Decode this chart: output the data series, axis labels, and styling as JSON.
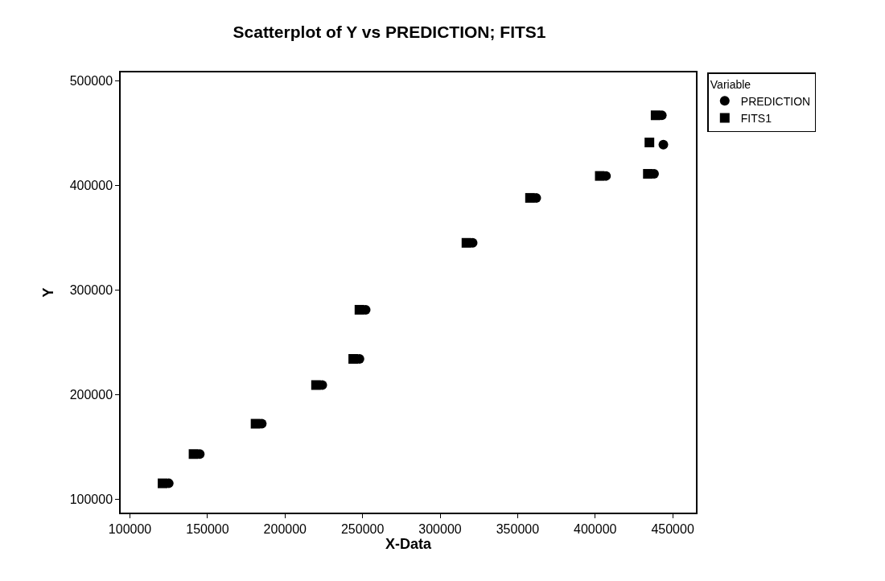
{
  "chart_data": {
    "type": "scatter",
    "title": "Scatterplot of Y vs PREDICTION; FITS1",
    "xlabel": "X-Data",
    "ylabel": "Y",
    "legend_title": "Variable",
    "series": [
      {
        "name": "PREDICTION",
        "color": "#000000",
        "marker": "circle",
        "x": [
          125000,
          145000,
          185000,
          224000,
          248000,
          252000,
          321000,
          362000,
          407000,
          438000,
          444000,
          443000
        ],
        "values": [
          115000,
          143000,
          172000,
          209000,
          234000,
          281000,
          345000,
          388000,
          409000,
          411000,
          439000,
          467000
        ]
      },
      {
        "name": "FITS1",
        "color": "#000000",
        "marker": "square",
        "x": [
          121000,
          141000,
          181000,
          220000,
          244000,
          248000,
          317000,
          358000,
          403000,
          434000,
          435000,
          439000
        ],
        "values": [
          115000,
          143000,
          172000,
          209000,
          234000,
          281000,
          345000,
          388000,
          409000,
          411000,
          441000,
          467000
        ]
      }
    ],
    "xlim": [
      94000,
      465000
    ],
    "xticks": [
      100000,
      150000,
      200000,
      250000,
      300000,
      350000,
      400000,
      450000
    ],
    "ylim": [
      87000,
      508000
    ],
    "yticks": [
      100000,
      200000,
      300000,
      400000,
      500000
    ],
    "legend": "top right"
  }
}
